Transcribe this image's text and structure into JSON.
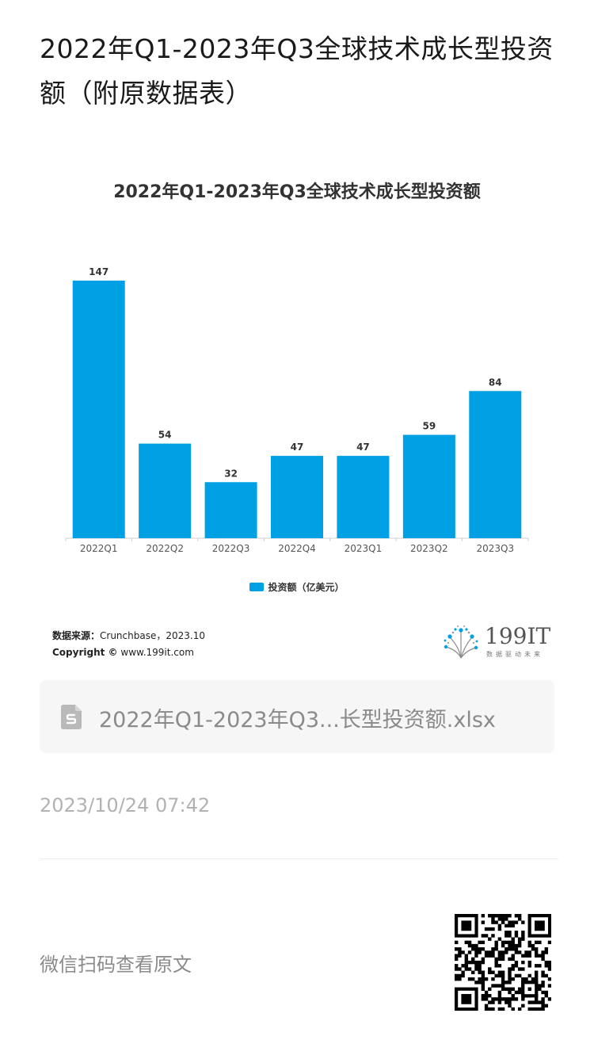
{
  "article": {
    "title": "2022年Q1-2023年Q3全球技术成长型投资额（附原数据表）"
  },
  "chart_data": {
    "type": "bar",
    "title": "2022年Q1-2023年Q3全球技术成长型投资额",
    "categories": [
      "2022Q1",
      "2022Q2",
      "2022Q3",
      "2022Q4",
      "2023Q1",
      "2023Q2",
      "2023Q3"
    ],
    "series": [
      {
        "name": "投资额（亿美元）",
        "values": [
          147,
          54,
          32,
          47,
          47,
          59,
          84
        ],
        "color": "#00a0e4"
      }
    ],
    "ylim": [
      0,
      160
    ],
    "grid": false,
    "data_labels": true,
    "legend_position": "bottom-center"
  },
  "source": {
    "label": "数据来源：",
    "text": "Crunchbase，2023.10",
    "copyright_label": "Copyright ©",
    "copyright_text": "www.199it.com"
  },
  "logo": {
    "text": "199IT",
    "tagline": "数据驱动未来"
  },
  "attachment": {
    "icon": "spreadsheet-file-icon",
    "filename": "2022年Q1-2023年Q3...长型投资额.xlsx"
  },
  "meta": {
    "timestamp": "2023/10/24 07:42"
  },
  "footer": {
    "qr_caption": "微信扫码查看原文",
    "qr_icon": "qr-code-icon"
  }
}
